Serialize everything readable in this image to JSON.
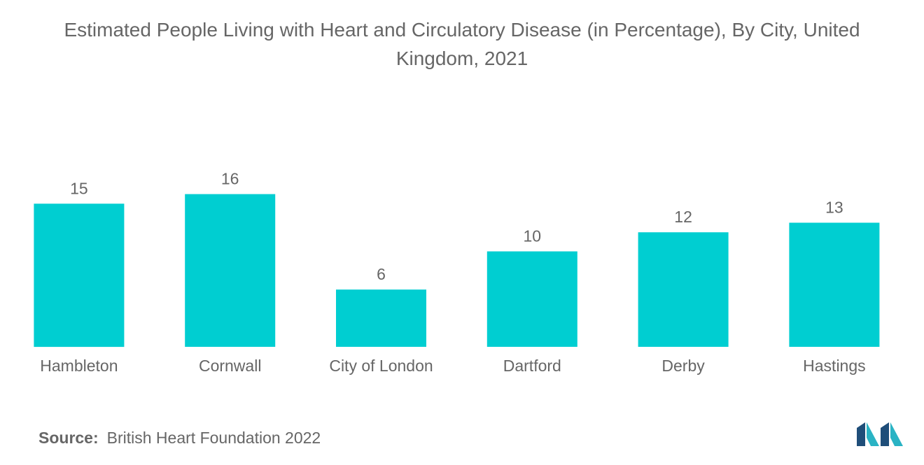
{
  "title": {
    "line1": "Estimated People Living with Heart and Circulatory Disease (in Percentage), By City, United",
    "line2": "Kingdom, 2021"
  },
  "source": {
    "label": "Source:",
    "text": "British Heart Foundation 2022"
  },
  "colors": {
    "bar": "#00CED1",
    "text": "#666666",
    "logo_dark": "#1F4E79",
    "logo_light": "#2AB3C4"
  },
  "logo": {
    "icon": "mordor-intelligence-logo-icon"
  },
  "chart_data": {
    "type": "bar",
    "title": "Estimated People Living with Heart and Circulatory Disease (in Percentage), By City, United Kingdom, 2021",
    "categories": [
      "Hambleton",
      "Cornwall",
      "City of London",
      "Dartford",
      "Derby",
      "Hastings"
    ],
    "values": [
      15,
      16,
      6,
      10,
      12,
      13
    ],
    "xlabel": "",
    "ylabel": "",
    "ylim": [
      0,
      16
    ],
    "grid": false,
    "legend": "none",
    "data_labels": true
  }
}
